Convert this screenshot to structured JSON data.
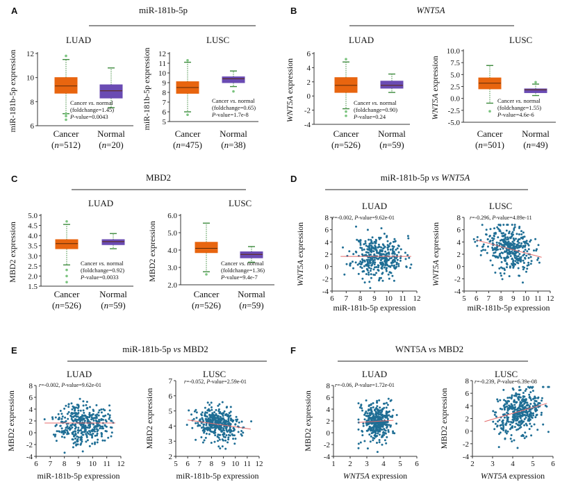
{
  "colors": {
    "cancer": "#e8650f",
    "normal": "#6a4bb3",
    "scatter": "#1f6e95",
    "fit": "#e46a6a",
    "outlier_green": "#7bc47f",
    "whisker_green": "#3c8a3c",
    "text": "#111111",
    "rule": "#222222"
  },
  "panels": [
    {
      "letter": "A",
      "title": "miR-181b-5p",
      "title_italic": false
    },
    {
      "letter": "B",
      "title": "WNT5A",
      "title_italic": true
    },
    {
      "letter": "C",
      "title": "MBD2",
      "title_italic": false
    },
    {
      "letter": "D",
      "title_parts": [
        "miR-181b-5p ",
        "vs",
        " ",
        "WNT5A"
      ],
      "title_italic_flags": [
        false,
        true,
        false,
        true
      ]
    },
    {
      "letter": "E",
      "title_parts": [
        "miR-181b-5p ",
        "vs",
        " MBD2"
      ],
      "title_italic_flags": [
        false,
        true,
        false
      ]
    },
    {
      "letter": "F",
      "title_parts": [
        "WNT5A ",
        "vs",
        " MBD2"
      ],
      "title_italic_flags": [
        false,
        true,
        false
      ]
    }
  ],
  "chart_data": [
    {
      "id": "A1",
      "type": "box",
      "subtitle": "LUAD",
      "ylabel": "miR-181b-5p expression",
      "ylabel_italic_part": "",
      "yticks": [
        "12",
        "10",
        "8",
        "6"
      ],
      "ylim": [
        6,
        12
      ],
      "categories": [
        "Cancer",
        "Normal"
      ],
      "n_labels": [
        "512",
        "20"
      ],
      "boxes": [
        {
          "name": "Cancer",
          "q1": 8.7,
          "median": 9.3,
          "q3": 10.0,
          "whisker_low": 7.0,
          "whisker_high": 11.5,
          "outliers": [
            11.8,
            7.0,
            6.8,
            6.5
          ]
        },
        {
          "name": "Normal",
          "q1": 8.3,
          "median": 8.9,
          "q3": 9.4,
          "whisker_low": 7.5,
          "whisker_high": 10.8,
          "outliers": []
        }
      ],
      "stats": [
        "Cancer vs. normal",
        "(foldchange=1.45)",
        "P-value=0.0043"
      ]
    },
    {
      "id": "A2",
      "type": "box",
      "subtitle": "LUSC",
      "ylabel": "miR-181b-5p expression",
      "ylabel_italic_part": "",
      "yticks": [
        "12",
        "11",
        "10",
        "9",
        "8",
        "7",
        "6",
        "5"
      ],
      "ylim": [
        5,
        12
      ],
      "categories": [
        "Cancer",
        "Normal"
      ],
      "n_labels": [
        "475",
        "38"
      ],
      "boxes": [
        {
          "name": "Cancer",
          "q1": 7.9,
          "median": 8.5,
          "q3": 9.1,
          "whisker_low": 6.0,
          "whisker_high": 11.1,
          "outliers": [
            11.3,
            5.7
          ]
        },
        {
          "name": "Normal",
          "q1": 9.0,
          "median": 9.4,
          "q3": 9.6,
          "whisker_low": 8.6,
          "whisker_high": 10.2,
          "outliers": [
            8.1
          ]
        }
      ],
      "stats": [
        "Cancer vs. normal",
        "(foldchange=0.65)",
        "P-value=1.7e-8"
      ]
    },
    {
      "id": "B1",
      "type": "box",
      "subtitle": "LUAD",
      "ylabel": "WNT5A expression",
      "ylabel_italic_part": "WNT5A",
      "yticks": [
        "6",
        "4",
        "2",
        "0",
        "-2",
        "-4"
      ],
      "ylim": [
        -4,
        6
      ],
      "categories": [
        "Cancer",
        "Normal"
      ],
      "n_labels": [
        "526",
        "59"
      ],
      "boxes": [
        {
          "name": "Cancer",
          "q1": 0.5,
          "median": 1.5,
          "q3": 2.6,
          "whisker_low": -1.8,
          "whisker_high": 4.8,
          "outliers": [
            5.2,
            -2.2,
            -2.8
          ]
        },
        {
          "name": "Normal",
          "q1": 1.1,
          "median": 1.5,
          "q3": 2.1,
          "whisker_low": 0.5,
          "whisker_high": 3.1,
          "outliers": []
        }
      ],
      "stats": [
        "Cancer vs. normal",
        "(foldchange=0.90)",
        "P-value=0.24"
      ]
    },
    {
      "id": "B2",
      "type": "box",
      "subtitle": "LUSC",
      "ylabel": "WNT5A expression",
      "ylabel_italic_part": "WNT5A",
      "yticks": [
        "10.0",
        "7.5",
        "5.0",
        "2.5",
        "0.0",
        "-2.5",
        "-5.0"
      ],
      "ylim": [
        -5,
        10
      ],
      "categories": [
        "Cancer",
        "Normal"
      ],
      "n_labels": [
        "501",
        "49"
      ],
      "boxes": [
        {
          "name": "Cancer",
          "q1": 2.0,
          "median": 3.2,
          "q3": 4.3,
          "whisker_low": -1.0,
          "whisker_high": 6.9,
          "outliers": [
            -2.7
          ]
        },
        {
          "name": "Normal",
          "q1": 1.2,
          "median": 1.8,
          "q3": 2.0,
          "whisker_low": 0.6,
          "whisker_high": 3.0,
          "outliers": [
            3.4
          ]
        }
      ],
      "stats": [
        "Cancer vs. normal",
        "(foldchange=1.55)",
        "P-value=4.6e-6"
      ]
    },
    {
      "id": "C1",
      "type": "box",
      "subtitle": "LUAD",
      "ylabel": "MBD2 expression",
      "ylabel_italic_part": "",
      "yticks": [
        "5.0",
        "4.5",
        "4.0",
        "3.5",
        "3.0",
        "2.5",
        "2.0",
        "1.5"
      ],
      "ylim": [
        1.5,
        5.0
      ],
      "categories": [
        "Cancer",
        "Normal"
      ],
      "n_labels": [
        "526",
        "59"
      ],
      "boxes": [
        {
          "name": "Cancer",
          "q1": 3.35,
          "median": 3.6,
          "q3": 3.8,
          "whisker_low": 2.55,
          "whisker_high": 4.55,
          "outliers": [
            4.7,
            2.3,
            2.0,
            1.7
          ]
        },
        {
          "name": "Normal",
          "q1": 3.55,
          "median": 3.7,
          "q3": 3.8,
          "whisker_low": 3.35,
          "whisker_high": 4.1,
          "outliers": []
        }
      ],
      "stats": [
        "Cancer vs. normal",
        "(foldchange=0.92)",
        "P-value=0.0033"
      ]
    },
    {
      "id": "C2",
      "type": "box",
      "subtitle": "LUSC",
      "ylabel": "MBD2 expression",
      "ylabel_italic_part": "",
      "yticks": [
        "6.0",
        "5.0",
        "4.0",
        "3.0",
        "2.0"
      ],
      "ylim": [
        2.0,
        6.0
      ],
      "categories": [
        "Cancer",
        "Normal"
      ],
      "n_labels": [
        "526",
        "59"
      ],
      "boxes": [
        {
          "name": "Cancer",
          "q1": 3.85,
          "median": 4.1,
          "q3": 4.45,
          "whisker_low": 2.75,
          "whisker_high": 5.55,
          "outliers": [
            2.6
          ]
        },
        {
          "name": "Normal",
          "q1": 3.55,
          "median": 3.75,
          "q3": 3.9,
          "whisker_low": 3.3,
          "whisker_high": 4.2,
          "outliers": []
        }
      ],
      "stats": [
        "Cancer vs. normal",
        "(foldchange=1.36)",
        "P-value=9.4e-7"
      ]
    },
    {
      "id": "D1",
      "type": "scatter",
      "subtitle": "LUAD",
      "ylabel": "WNT5A expression",
      "ylabel_italic_part": "WNT5A",
      "xlabel": "miR-181b-5p expression",
      "xlabel_italic_part": "",
      "xticks": [
        "6",
        "7",
        "8",
        "9",
        "10",
        "11",
        "12"
      ],
      "xlim": [
        6,
        12
      ],
      "yticks": [
        "8",
        "6",
        "4",
        "2",
        "0",
        "-2",
        "-4"
      ],
      "ylim": [
        -4,
        8
      ],
      "stat": {
        "r": "-0.002",
        "p": "9.62e-01"
      },
      "fit": [
        [
          6.6,
          1.65
        ],
        [
          11.6,
          1.64
        ]
      ],
      "cloud": {
        "xmean": 9.3,
        "xsd": 0.9,
        "ymean": 1.6,
        "ysd": 1.7,
        "n": 380,
        "slope": 0.0,
        "seed": 11,
        "xmin": 6.6,
        "xmax": 11.6,
        "ymin": -3.5,
        "ymax": 6.5
      }
    },
    {
      "id": "D2",
      "type": "scatter",
      "subtitle": "LUSC",
      "ylabel": "WNT5A expression",
      "ylabel_italic_part": "WNT5A",
      "xlabel": "miR-181b-5p expression",
      "xlabel_italic_part": "",
      "xticks": [
        "5",
        "6",
        "7",
        "8",
        "9",
        "10",
        "11",
        "12"
      ],
      "xlim": [
        5,
        12
      ],
      "yticks": [
        "8",
        "6",
        "4",
        "2",
        "0",
        "-2",
        "-4"
      ],
      "ylim": [
        -4,
        8
      ],
      "stat": {
        "r": "-0.296",
        "p": "4.89e-11"
      },
      "fit": [
        [
          6.0,
          4.3
        ],
        [
          11.3,
          1.5
        ]
      ],
      "cloud": {
        "xmean": 8.6,
        "xsd": 1.0,
        "ymean": 3.0,
        "ysd": 1.8,
        "n": 360,
        "slope": -0.55,
        "seed": 23,
        "xmin": 5.8,
        "xmax": 11.4,
        "ymin": -3.3,
        "ymax": 6.8
      }
    },
    {
      "id": "E1",
      "type": "scatter",
      "subtitle": "LUAD",
      "ylabel": "MBD2 expression",
      "ylabel_italic_part": "",
      "xlabel": "miR-181b-5p expression",
      "xlabel_italic_part": "",
      "xticks": [
        "6",
        "7",
        "8",
        "9",
        "10",
        "11",
        "12"
      ],
      "xlim": [
        6,
        12
      ],
      "yticks": [
        "8",
        "6",
        "4",
        "2",
        "0",
        "-2",
        "-4"
      ],
      "ylim": [
        -4,
        8
      ],
      "stat": {
        "r": "-0.002",
        "p": "9.62e-01"
      },
      "fit": [
        [
          6.6,
          1.65
        ],
        [
          11.6,
          1.64
        ]
      ],
      "cloud": {
        "xmean": 9.3,
        "xsd": 0.9,
        "ymean": 1.6,
        "ysd": 1.7,
        "n": 380,
        "slope": 0.0,
        "seed": 37,
        "xmin": 6.6,
        "xmax": 11.6,
        "ymin": -3.5,
        "ymax": 6.5
      }
    },
    {
      "id": "E2",
      "type": "scatter",
      "subtitle": "LUSC",
      "ylabel": "MBD2 expression",
      "ylabel_italic_part": "",
      "xlabel": "miR-181b-5p expression",
      "xlabel_italic_part": "",
      "xticks": [
        "5",
        "6",
        "7",
        "8",
        "9",
        "10",
        "11",
        "12"
      ],
      "xlim": [
        5,
        12
      ],
      "yticks": [
        "7",
        "6",
        "5",
        "4",
        "3",
        "2"
      ],
      "ylim": [
        2,
        7
      ],
      "stat": {
        "r": "-0.052",
        "p": "2.59e-01"
      },
      "fit": [
        [
          6.0,
          4.4
        ],
        [
          11.3,
          3.8
        ]
      ],
      "cloud": {
        "xmean": 8.6,
        "xsd": 1.0,
        "ymean": 4.1,
        "ysd": 0.55,
        "n": 380,
        "slope": -0.1,
        "seed": 53,
        "xmin": 5.8,
        "xmax": 11.4,
        "ymin": 2.5,
        "ymax": 6.0
      }
    },
    {
      "id": "F1",
      "type": "scatter",
      "subtitle": "LUAD",
      "ylabel": "MBD2 expression",
      "ylabel_italic_part": "",
      "xlabel": "WNT5A expression",
      "xlabel_italic_part": "WNT5A",
      "xticks": [
        "1",
        "2",
        "3",
        "4",
        "5",
        "6"
      ],
      "xlim": [
        1,
        6
      ],
      "yticks": [
        "8",
        "6",
        "4",
        "2",
        "0",
        "-2",
        "-4"
      ],
      "ylim": [
        -4,
        8
      ],
      "stat": {
        "r": "-0.06",
        "p": "1.72e-01"
      },
      "fit": [
        [
          2.5,
          1.75
        ],
        [
          4.6,
          2.1
        ]
      ],
      "cloud": {
        "xmean": 3.6,
        "xsd": 0.45,
        "ymean": 1.8,
        "ysd": 1.6,
        "n": 380,
        "slope": 0.15,
        "seed": 71,
        "xmin": 2.5,
        "xmax": 4.8,
        "ymin": -3.3,
        "ymax": 6.0
      }
    },
    {
      "id": "F2",
      "type": "scatter",
      "subtitle": "LUSC",
      "ylabel": "MBD2 expression",
      "ylabel_italic_part": "",
      "xlabel": "WNT5A expression",
      "xlabel_italic_part": "WNT5A",
      "xticks": [
        "2",
        "3",
        "4",
        "5",
        "6"
      ],
      "xlim": [
        2,
        6
      ],
      "yticks": [
        "8",
        "6",
        "4",
        "2",
        "0",
        "-2",
        "-4"
      ],
      "ylim": [
        -4,
        8
      ],
      "stat": {
        "r": "-0.239",
        "p": "6.39e-08"
      },
      "fit": [
        [
          2.6,
          1.5
        ],
        [
          5.7,
          4.4
        ]
      ],
      "cloud": {
        "xmean": 4.3,
        "xsd": 0.6,
        "ymean": 3.0,
        "ysd": 1.9,
        "n": 380,
        "slope": 0.95,
        "seed": 97,
        "xmin": 2.7,
        "xmax": 5.8,
        "ymin": -3.3,
        "ymax": 7.0
      }
    }
  ]
}
